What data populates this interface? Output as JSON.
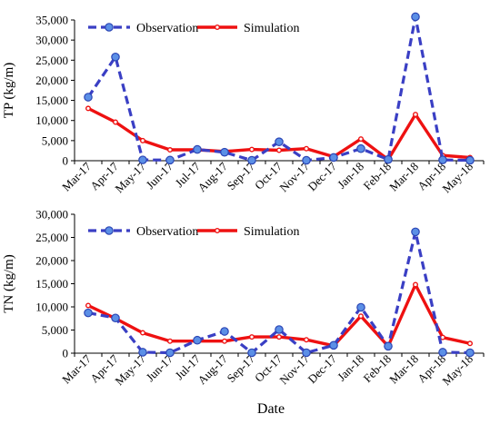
{
  "xlabel": "Date",
  "chart_data": [
    {
      "type": "line",
      "ylabel": "TP (kg/m)",
      "ylim": [
        0,
        35000
      ],
      "ytick_values": [
        0,
        5000,
        10000,
        15000,
        20000,
        25000,
        30000,
        35000
      ],
      "ytick_labels": [
        "0",
        "5,000",
        "10,000",
        "15,000",
        "20,000",
        "25,000",
        "30,000",
        "35,000"
      ],
      "categories": [
        "Mar-17",
        "Apr-17",
        "May-17",
        "Jun-17",
        "Jul-17",
        "Aug-17",
        "Sep-17",
        "Oct-17",
        "Nov-17",
        "Dec-17",
        "Jan-18",
        "Feb-18",
        "Mar-18",
        "Apr-18",
        "May-18"
      ],
      "legend_position": "top-left",
      "grid": false,
      "series": [
        {
          "name": "Observation",
          "color": "#3a3fc4",
          "style": "dashed",
          "marker": "circle",
          "values": [
            15800,
            25800,
            200,
            150,
            2800,
            2100,
            100,
            4700,
            100,
            800,
            3000,
            300,
            35800,
            200,
            100
          ]
        },
        {
          "name": "Simulation",
          "color": "#ee1111",
          "style": "solid",
          "marker": "circle",
          "values": [
            13000,
            9600,
            5000,
            2700,
            2700,
            2300,
            2800,
            2600,
            3000,
            1000,
            5400,
            300,
            11500,
            1300,
            800
          ]
        }
      ]
    },
    {
      "type": "line",
      "ylabel": "TN (kg/m)",
      "ylim": [
        0,
        30000
      ],
      "ytick_values": [
        0,
        5000,
        10000,
        15000,
        20000,
        25000,
        30000
      ],
      "ytick_labels": [
        "0",
        "5,000",
        "10,000",
        "15,000",
        "20,000",
        "25,000",
        "30,000"
      ],
      "categories": [
        "Mar-17",
        "Apr-17",
        "May-17",
        "Jun-17",
        "Jul-17",
        "Aug-17",
        "Sep-17",
        "Oct-17",
        "Nov-17",
        "Dec-17",
        "Jan-18",
        "Feb-18",
        "Mar-18",
        "Apr-18",
        "May-18"
      ],
      "legend_position": "top-left",
      "grid": false,
      "series": [
        {
          "name": "Observation",
          "color": "#3a3fc4",
          "style": "dashed",
          "marker": "circle",
          "values": [
            8700,
            7600,
            200,
            100,
            2800,
            4700,
            100,
            5100,
            100,
            1700,
            9900,
            1500,
            26200,
            200,
            100
          ]
        },
        {
          "name": "Simulation",
          "color": "#ee1111",
          "style": "solid",
          "marker": "circle",
          "values": [
            10300,
            7500,
            4400,
            2600,
            2600,
            2600,
            3500,
            3500,
            2900,
            1600,
            8000,
            1500,
            14800,
            3400,
            2100
          ]
        }
      ]
    }
  ]
}
